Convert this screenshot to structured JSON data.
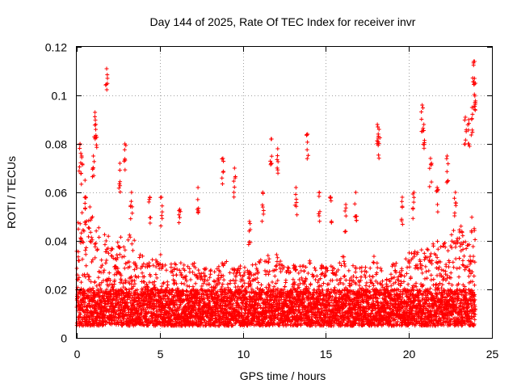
{
  "chart_data": {
    "type": "scatter",
    "title": "Day 144 of 2025, Rate Of TEC Index for receiver invr",
    "xlabel": "GPS time / hours",
    "ylabel": "ROTI / TECUs",
    "xlim": [
      0,
      25
    ],
    "ylim": [
      0,
      0.12
    ],
    "xticks": [
      "0",
      "5",
      "10",
      "15",
      "20",
      "25"
    ],
    "yticks": [
      "0",
      "0.02",
      "0.04",
      "0.06",
      "0.08",
      "0.1",
      "0.12"
    ],
    "grid": true,
    "marker": "+",
    "color": "#ff0000",
    "series": [
      {
        "name": "ROTI",
        "samples_per_hour": 240,
        "x_range": [
          0,
          24
        ],
        "envelope": {
          "hours": [
            0,
            0.5,
            1,
            1.5,
            2,
            2.5,
            3,
            3.5,
            4,
            4.5,
            5,
            5.5,
            6,
            6.5,
            7,
            7.5,
            8,
            8.5,
            9,
            9.5,
            10,
            10.5,
            11,
            11.5,
            12,
            12.5,
            13,
            13.5,
            14,
            14.5,
            15,
            15.5,
            16,
            16.5,
            17,
            17.5,
            18,
            18.5,
            19,
            19.5,
            20,
            20.5,
            21,
            21.5,
            22,
            22.5,
            23,
            23.5,
            24
          ],
          "typical_max": [
            0.05,
            0.055,
            0.055,
            0.045,
            0.042,
            0.04,
            0.045,
            0.04,
            0.035,
            0.032,
            0.035,
            0.03,
            0.032,
            0.03,
            0.032,
            0.03,
            0.03,
            0.03,
            0.032,
            0.03,
            0.03,
            0.03,
            0.032,
            0.035,
            0.035,
            0.03,
            0.03,
            0.03,
            0.032,
            0.03,
            0.03,
            0.03,
            0.035,
            0.03,
            0.03,
            0.03,
            0.035,
            0.03,
            0.032,
            0.03,
            0.035,
            0.038,
            0.04,
            0.04,
            0.04,
            0.045,
            0.045,
            0.05,
            0.05
          ]
        },
        "baseline_range": [
          0.005,
          0.02
        ],
        "spikes": [
          {
            "x": 0.2,
            "y": 0.08
          },
          {
            "x": 0.3,
            "y": 0.075
          },
          {
            "x": 0.5,
            "y": 0.065
          },
          {
            "x": 1.0,
            "y": 0.075
          },
          {
            "x": 1.1,
            "y": 0.093
          },
          {
            "x": 1.15,
            "y": 0.088
          },
          {
            "x": 1.8,
            "y": 0.111
          },
          {
            "x": 2.6,
            "y": 0.072
          },
          {
            "x": 2.9,
            "y": 0.08
          },
          {
            "x": 3.3,
            "y": 0.06
          },
          {
            "x": 4.4,
            "y": 0.058
          },
          {
            "x": 5.1,
            "y": 0.058
          },
          {
            "x": 6.2,
            "y": 0.053
          },
          {
            "x": 7.3,
            "y": 0.062
          },
          {
            "x": 8.8,
            "y": 0.074
          },
          {
            "x": 9.5,
            "y": 0.07
          },
          {
            "x": 10.4,
            "y": 0.048
          },
          {
            "x": 11.2,
            "y": 0.06
          },
          {
            "x": 11.7,
            "y": 0.082
          },
          {
            "x": 12.1,
            "y": 0.078
          },
          {
            "x": 13.2,
            "y": 0.062
          },
          {
            "x": 13.9,
            "y": 0.084
          },
          {
            "x": 14.6,
            "y": 0.06
          },
          {
            "x": 15.3,
            "y": 0.058
          },
          {
            "x": 16.2,
            "y": 0.055
          },
          {
            "x": 16.8,
            "y": 0.06
          },
          {
            "x": 18.1,
            "y": 0.088
          },
          {
            "x": 18.2,
            "y": 0.086
          },
          {
            "x": 19.6,
            "y": 0.058
          },
          {
            "x": 20.3,
            "y": 0.06
          },
          {
            "x": 20.8,
            "y": 0.096
          },
          {
            "x": 20.9,
            "y": 0.088
          },
          {
            "x": 21.3,
            "y": 0.074
          },
          {
            "x": 21.7,
            "y": 0.062
          },
          {
            "x": 22.3,
            "y": 0.075
          },
          {
            "x": 22.8,
            "y": 0.06
          },
          {
            "x": 23.4,
            "y": 0.091
          },
          {
            "x": 23.6,
            "y": 0.09
          },
          {
            "x": 23.8,
            "y": 0.095
          },
          {
            "x": 23.9,
            "y": 0.114
          },
          {
            "x": 23.95,
            "y": 0.107
          },
          {
            "x": 24.0,
            "y": 0.105
          }
        ]
      }
    ]
  }
}
